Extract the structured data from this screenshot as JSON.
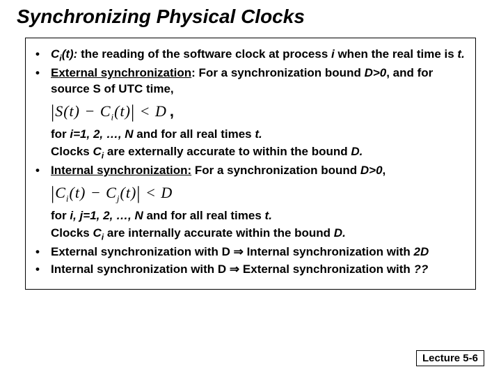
{
  "title": "Synchronizing Physical Clocks",
  "bullets": {
    "b1a": "C",
    "b1b": "(t):",
    "b1c": " the reading of the software clock at process ",
    "b1d": "i",
    "b1e": " when the real time is ",
    "b1f": "t.",
    "b2a": "External synchronization",
    "b2b": ": For a synchronization bound ",
    "b2c": "D>0",
    "b2d": ", and for source S of UTC time,",
    "f1_after": ",",
    "b2e_a": "for ",
    "b2e_b": "i=1, 2, …, N",
    "b2e_c": " and for all real times ",
    "b2e_d": "t.",
    "b2f_a": "Clocks ",
    "b2f_b": "C",
    "b2f_c": " are externally accurate to within the bound ",
    "b2f_d": "D.",
    "b3a": "Internal synchronization:",
    "b3b": " For a synchronization bound ",
    "b3c": "D>0",
    "b3d": ",",
    "b3e_a": "for ",
    "b3e_b": "i, j=1, 2, …, N",
    "b3e_c": " and for all real times ",
    "b3e_d": "t.",
    "b3f_a": "Clocks ",
    "b3f_b": "C",
    "b3f_c": " are internally accurate within the bound ",
    "b3f_d": "D.",
    "b4a": "External synchronization with D ",
    "b4b": "⇒",
    "b4c": " Internal synchronization with ",
    "b4d": "2D",
    "b5a": "Internal synchronization with D ",
    "b5b": "⇒",
    "b5c": " External synchronization with ",
    "b5d": "??",
    "sub_i": "i"
  },
  "formula1": {
    "lbar": "|",
    "s": "S",
    "lp": "(",
    "t1": "t",
    "rp": ")",
    "minus": " − ",
    "c": "C",
    "sub": "i",
    "lp2": "(",
    "t2": "t",
    "rp2": ")",
    "rbar": "|",
    "lt": " < ",
    "d": "D"
  },
  "formula2": {
    "lbar": "|",
    "c1": "C",
    "sub1": "i",
    "lp1": "(",
    "t1": "t",
    "rp1": ")",
    "minus": " − ",
    "c2": "C",
    "sub2": "j",
    "lp2": "(",
    "t2": "t",
    "rp2": ")",
    "rbar": "|",
    "lt": " < ",
    "d": "D"
  },
  "footer": "Lecture 5-6"
}
